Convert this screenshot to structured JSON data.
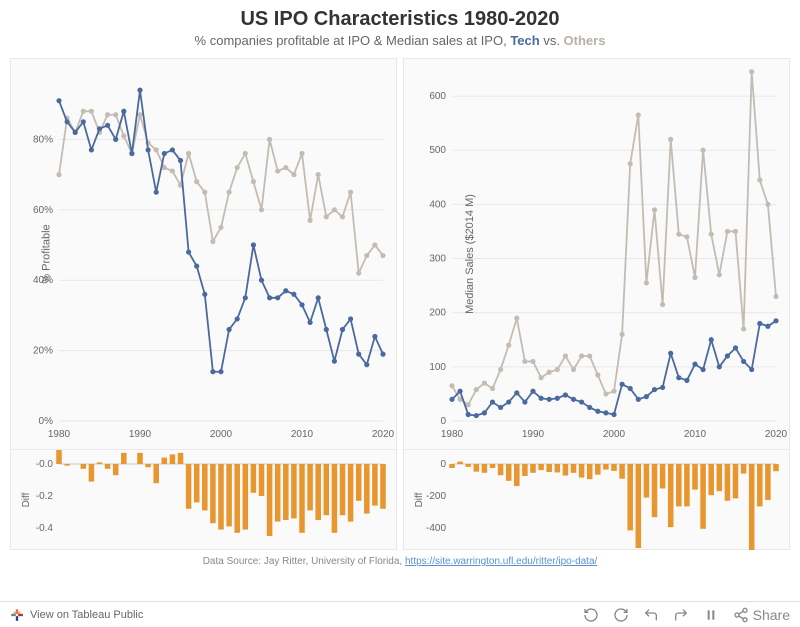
{
  "title": "US IPO Characteristics 1980-2020",
  "subtitle_prefix": "% companies profitable at IPO & Median sales at IPO, ",
  "subtitle_tech": "Tech",
  "subtitle_vs": " vs. ",
  "subtitle_others": "Others",
  "source_prefix": "Data Source: Jay Ritter, University of Florida, ",
  "source_link": "https://site.warrington.ufl.edu/ritter/ipo-data/",
  "tableau_button": "View on Tableau Public",
  "share_label": "Share",
  "colors": {
    "tech": "#4a6a9e",
    "others": "#c4bcb2",
    "diff_bar": "#e8962f",
    "grid": "#e8e8e8",
    "axis_text": "#666666",
    "panel_bg": "#fafafa",
    "panel_border": "#e8e8e8"
  },
  "left_chart": {
    "y_label": "% Profitable",
    "diff_label": "Diff",
    "ylim": [
      0,
      100
    ],
    "yticks": [
      0,
      20,
      40,
      60,
      80
    ],
    "ytick_labels": [
      "0%",
      "20%",
      "40%",
      "60%",
      "80%"
    ],
    "xlim": [
      1980,
      2020
    ],
    "xticks": [
      1980,
      1990,
      2000,
      2010,
      2020
    ],
    "diff_ylim": [
      -0.5,
      0.05
    ],
    "diff_yticks": [
      -0.4,
      -0.2,
      0.0
    ],
    "diff_ytick_labels": [
      "-0.4",
      "-0.2",
      "-0.0"
    ],
    "years": [
      1980,
      1981,
      1982,
      1983,
      1984,
      1985,
      1986,
      1987,
      1988,
      1989,
      1990,
      1991,
      1992,
      1993,
      1994,
      1995,
      1996,
      1997,
      1998,
      1999,
      2000,
      2001,
      2002,
      2003,
      2004,
      2005,
      2006,
      2007,
      2008,
      2009,
      2010,
      2011,
      2012,
      2013,
      2014,
      2015,
      2016,
      2017,
      2018,
      2019,
      2020
    ],
    "tech": [
      91,
      85,
      82,
      85,
      77,
      83,
      84,
      80,
      88,
      76,
      94,
      77,
      65,
      76,
      77,
      74,
      48,
      44,
      36,
      14,
      14,
      26,
      29,
      35,
      50,
      40,
      35,
      35,
      37,
      36,
      33,
      28,
      35,
      26,
      17,
      26,
      29,
      19,
      16,
      24,
      19
    ],
    "others": [
      70,
      86,
      82,
      88,
      88,
      82,
      87,
      87,
      81,
      76,
      87,
      79,
      77,
      72,
      71,
      67,
      76,
      68,
      65,
      51,
      55,
      65,
      72,
      76,
      68,
      60,
      80,
      71,
      72,
      70,
      76,
      57,
      70,
      58,
      60,
      58,
      65,
      42,
      47,
      50,
      47
    ],
    "diff": [
      0.21,
      -0.01,
      0.0,
      -0.03,
      -0.11,
      0.01,
      -0.03,
      -0.07,
      0.07,
      0.0,
      0.07,
      -0.02,
      -0.12,
      0.04,
      0.06,
      0.07,
      -0.28,
      -0.24,
      -0.29,
      -0.37,
      -0.41,
      -0.39,
      -0.43,
      -0.41,
      -0.18,
      -0.2,
      -0.45,
      -0.36,
      -0.35,
      -0.34,
      -0.43,
      -0.29,
      -0.35,
      -0.32,
      -0.43,
      -0.32,
      -0.36,
      -0.23,
      -0.31,
      -0.26,
      -0.28
    ]
  },
  "right_chart": {
    "y_label": "Median Sales ($2014 M)",
    "diff_label": "Diff",
    "ylim": [
      0,
      650
    ],
    "yticks": [
      0,
      100,
      200,
      300,
      400,
      500,
      600
    ],
    "xlim": [
      1980,
      2020
    ],
    "xticks": [
      1980,
      1990,
      2000,
      2010,
      2020
    ],
    "diff_ylim": [
      -500,
      50
    ],
    "diff_yticks": [
      -400,
      -200,
      0
    ],
    "years": [
      1980,
      1981,
      1982,
      1983,
      1984,
      1985,
      1986,
      1987,
      1988,
      1989,
      1990,
      1991,
      1992,
      1993,
      1994,
      1995,
      1996,
      1997,
      1998,
      1999,
      2000,
      2001,
      2002,
      2003,
      2004,
      2005,
      2006,
      2007,
      2008,
      2009,
      2010,
      2011,
      2012,
      2013,
      2014,
      2015,
      2016,
      2017,
      2018,
      2019,
      2020
    ],
    "tech": [
      40,
      55,
      12,
      10,
      15,
      35,
      25,
      35,
      52,
      35,
      55,
      42,
      40,
      42,
      48,
      40,
      35,
      25,
      18,
      15,
      12,
      68,
      60,
      40,
      45,
      58,
      62,
      125,
      80,
      75,
      105,
      95,
      150,
      100,
      120,
      135,
      110,
      95,
      180,
      175,
      185
    ],
    "others": [
      65,
      40,
      30,
      58,
      70,
      60,
      95,
      140,
      190,
      110,
      110,
      80,
      90,
      95,
      120,
      95,
      120,
      120,
      85,
      50,
      55,
      160,
      475,
      565,
      255,
      390,
      215,
      520,
      345,
      340,
      265,
      500,
      345,
      270,
      350,
      350,
      170,
      645,
      445,
      400,
      230
    ],
    "diff": [
      -25,
      15,
      -18,
      -48,
      -55,
      -25,
      -70,
      -105,
      -138,
      -75,
      -55,
      -38,
      -50,
      -53,
      -72,
      -55,
      -85,
      -95,
      -67,
      -35,
      -43,
      -92,
      -415,
      -525,
      -210,
      -332,
      -153,
      -395,
      -265,
      -265,
      -160,
      -405,
      -195,
      -170,
      -230,
      -215,
      -60,
      -550,
      -265,
      -225,
      -45
    ]
  }
}
